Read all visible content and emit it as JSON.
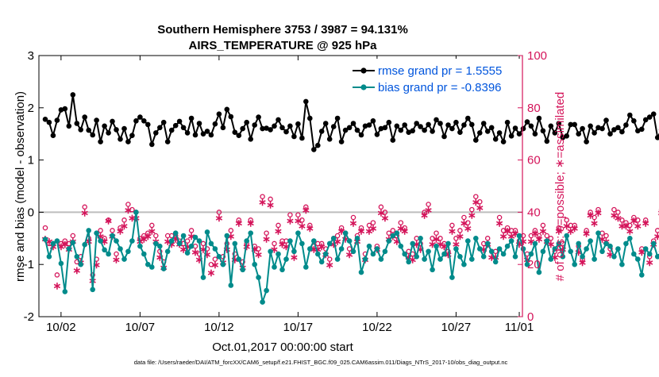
{
  "chart_data": {
    "type": "line",
    "title_line1": "Southern Hemisphere 3753 / 3987 = 94.131%",
    "title_line2": "AIRS_TEMPERATURE @ 925 hPa",
    "xlabel": "Oct.01,2017 00:00:00 start",
    "ylabel_left": "rmse and bias (model - observation)",
    "ylabel_right": "# of obs: o=possible; ∗=assimilated",
    "footer": "data file: /Users/raeder/DAI/ATM_forcXX/CAM6_setup/f.e21.FHIST_BGC.f09_025.CAM6assim.011/Diags_NTrS_2017-10/obs_diag_output.nc",
    "xlim": [
      0.6,
      31.2
    ],
    "ylim_left": [
      -2,
      3
    ],
    "ylim_right": [
      0,
      100
    ],
    "x_tick_labels": [
      {
        "x": 2,
        "label": "10/02"
      },
      {
        "x": 7,
        "label": "10/07"
      },
      {
        "x": 12,
        "label": "10/12"
      },
      {
        "x": 17,
        "label": "10/17"
      },
      {
        "x": 22,
        "label": "10/22"
      },
      {
        "x": 27,
        "label": "10/27"
      },
      {
        "x": 31,
        "label": "11/01"
      }
    ],
    "y_ticks_left": [
      "-2",
      "-1",
      "0",
      "1",
      "2",
      "3"
    ],
    "y_ticks_right": [
      "0",
      "20",
      "40",
      "60",
      "80",
      "100"
    ],
    "legend_position": "top-right",
    "legend": [
      {
        "label": "rmse grand pr = 1.5555",
        "color": "#000000",
        "text_color": "#0055dd"
      },
      {
        "label": "bias grand pr = -0.8396",
        "color": "#008b8b",
        "text_color": "#0055dd"
      }
    ],
    "zero_line": 0,
    "colors": {
      "rmse": "#000000",
      "bias": "#008b8b",
      "obs": "#d4145a",
      "right_axis": "#d4145a"
    },
    "x_start": 1.0,
    "x_step": 0.25,
    "series": [
      {
        "name": "rmse grand pr = 1.5555",
        "values": [
          1.78,
          1.72,
          1.47,
          1.76,
          1.96,
          1.98,
          1.65,
          2.25,
          1.7,
          1.58,
          1.82,
          1.57,
          1.48,
          1.76,
          1.35,
          1.65,
          1.52,
          1.74,
          1.58,
          1.4,
          1.6,
          1.35,
          1.47,
          1.75,
          1.82,
          1.75,
          1.68,
          1.3,
          1.52,
          1.62,
          1.72,
          1.35,
          1.57,
          1.66,
          1.74,
          1.62,
          1.52,
          1.8,
          1.48,
          1.7,
          1.5,
          1.55,
          1.48,
          1.69,
          1.88,
          1.62,
          1.97,
          1.83,
          1.53,
          1.47,
          1.6,
          1.72,
          1.4,
          1.67,
          1.82,
          1.6,
          1.61,
          1.58,
          1.65,
          1.77,
          1.62,
          1.54,
          1.65,
          1.45,
          1.69,
          1.42,
          2.12,
          1.8,
          1.2,
          1.28,
          1.55,
          1.7,
          1.4,
          1.64,
          1.8,
          1.35,
          1.57,
          1.62,
          1.7,
          1.57,
          1.48,
          1.65,
          1.67,
          1.75,
          1.49,
          1.6,
          1.62,
          1.72,
          1.38,
          1.65,
          1.57,
          1.67,
          1.53,
          1.56,
          1.7,
          1.64,
          1.57,
          1.68,
          1.55,
          1.77,
          1.7,
          1.45,
          1.67,
          1.6,
          1.72,
          1.53,
          1.67,
          1.8,
          1.68,
          1.38,
          1.52,
          1.7,
          1.55,
          1.62,
          1.4,
          1.52,
          1.35,
          1.72,
          1.46,
          1.61,
          1.5,
          1.6,
          1.73,
          1.65,
          1.5,
          1.8,
          1.56,
          1.36,
          1.65,
          1.52,
          1.7,
          1.43,
          1.46,
          1.68,
          1.68,
          1.5,
          1.6,
          1.35,
          1.65,
          1.52,
          1.62,
          1.6,
          1.76,
          1.5,
          1.58,
          1.62,
          1.54,
          1.67,
          1.86,
          1.75,
          1.56,
          1.59,
          1.77,
          1.82,
          1.88,
          1.43,
          1.58,
          1.65,
          1.38,
          1.7,
          1.5,
          1.72,
          1.47,
          1.52,
          1.95,
          1.72,
          1.45,
          1.67,
          1.55,
          1.44,
          1.62,
          1.8,
          1.52,
          1.68,
          1.57,
          1.75,
          1.55,
          1.66,
          1.48,
          1.58,
          1.75,
          1.47,
          1.5,
          1.55,
          1.53,
          1.4,
          1.68,
          1.58,
          1.62,
          1.52,
          1.48,
          1.75,
          1.42,
          1.57,
          1.68,
          1.6,
          1.55,
          1.52,
          1.7,
          1.42,
          1.68,
          1.55,
          1.58,
          1.46,
          1.55,
          1.72,
          1.6,
          1.52,
          1.85,
          1.7,
          1.5,
          1.45,
          1.7,
          1.9,
          1.65,
          1.73,
          1.55,
          1.8,
          1.56,
          1.7,
          1.95,
          1.58,
          1.7,
          1.85,
          1.82,
          1.6,
          1.47,
          1.47,
          1.38,
          1.42,
          1.62
        ]
      },
      {
        "name": "bias grand pr = -0.8396",
        "values": [
          -0.52,
          -0.85,
          -0.6,
          -0.55,
          -0.98,
          -1.52,
          -0.7,
          -0.58,
          -0.85,
          -1.0,
          -0.62,
          -0.35,
          -1.48,
          -0.4,
          -0.55,
          -0.72,
          -0.8,
          -0.45,
          -0.55,
          -0.7,
          -0.9,
          -0.75,
          -0.55,
          0.0,
          -0.65,
          -0.8,
          -1.0,
          -1.05,
          -0.6,
          -0.65,
          -1.08,
          -0.75,
          -0.55,
          -0.4,
          -0.6,
          -0.45,
          -0.78,
          -0.65,
          -0.48,
          -0.55,
          -1.25,
          -0.38,
          -0.6,
          -0.7,
          -0.85,
          -1.0,
          -0.45,
          -1.4,
          -0.6,
          -0.9,
          -1.1,
          -0.55,
          -0.4,
          -1.0,
          -1.25,
          -1.72,
          -1.5,
          -0.75,
          -1.05,
          -0.8,
          -1.1,
          -0.9,
          -0.55,
          -0.75,
          -0.4,
          -0.6,
          -1.05,
          -0.7,
          -0.55,
          -0.8,
          -0.95,
          -0.8,
          -0.6,
          -0.5,
          -0.9,
          -0.7,
          -0.4,
          -0.55,
          -0.75,
          -0.5,
          -1.15,
          -0.9,
          -0.65,
          -0.8,
          -0.7,
          -0.9,
          -0.75,
          -0.55,
          -0.45,
          -0.4,
          -0.65,
          -0.8,
          -0.95,
          -0.6,
          -0.85,
          -0.5,
          -0.9,
          -0.75,
          -1.1,
          -0.65,
          -0.9,
          -0.8,
          -0.6,
          -1.25,
          -0.7,
          -0.85,
          -1.0,
          -0.55,
          -0.9,
          -0.5,
          -0.7,
          -0.85,
          -0.6,
          -0.75,
          -0.95,
          -0.7,
          -0.8,
          -0.65,
          -0.55,
          -0.85,
          -0.45,
          -0.7,
          -1.0,
          -0.8,
          -0.6,
          -1.15,
          -0.75,
          -0.55,
          -0.9,
          -0.7,
          -0.6,
          -0.85,
          -0.45,
          -0.75,
          -1.0,
          -0.6,
          -0.85,
          -0.7,
          -0.55,
          -0.9,
          -0.4,
          -0.75,
          -0.6,
          -0.65,
          -0.85,
          -0.7,
          -1.0,
          -0.6,
          -0.5,
          -0.8,
          -0.9,
          -1.2,
          -0.7,
          -0.8,
          -0.6,
          -0.85,
          -0.75,
          -0.55,
          -1.1,
          -0.85,
          -0.65,
          -0.7,
          -0.8,
          -0.9,
          -0.6,
          -0.75,
          -0.7,
          -0.55,
          -0.85,
          -1.0,
          -0.9,
          -0.65,
          -0.8,
          -0.7,
          -0.6,
          -0.8,
          -0.65,
          -0.75,
          -0.85,
          -0.55,
          -0.95,
          -0.7,
          -0.6,
          -0.8,
          -0.65,
          -0.55,
          -0.75,
          -0.85,
          -0.6,
          -0.7,
          -0.9,
          -0.5,
          -0.8,
          -0.65,
          -0.7,
          -0.6,
          -0.85,
          -0.55,
          -0.75,
          -0.4,
          -0.6,
          -0.45,
          -0.75,
          -0.55,
          -0.65,
          -0.5,
          -0.35,
          -0.6,
          -0.4,
          -0.55,
          -0.8,
          -0.05,
          -0.6,
          -0.75,
          -0.45,
          -0.9,
          -0.7,
          -0.5,
          -0.65,
          -0.8,
          -1.0,
          -0.7,
          -0.9,
          -0.55,
          -0.75,
          -0.6,
          -0.35,
          -0.7,
          -0.65,
          -0.9,
          -0.5,
          -0.4,
          -0.65
        ]
      },
      {
        "name": "possible",
        "values": [
          34,
          28,
          28,
          16,
          28,
          29,
          28,
          31,
          21,
          23,
          42,
          30,
          16,
          22,
          33,
          30,
          37,
          33,
          24,
          34,
          37,
          43,
          41,
          40,
          30,
          31,
          32,
          35,
          31,
          25,
          21,
          31,
          31,
          31,
          29,
          28,
          29,
          33,
          27,
          24,
          28,
          26,
          20,
          22,
          40,
          23,
          28,
          33,
          24,
          37,
          21,
          28,
          37,
          27,
          26,
          46,
          32,
          45,
          28,
          35,
          29,
          29,
          39,
          25,
          39,
          37,
          42,
          35,
          27,
          28,
          28,
          26,
          22,
          30,
          31,
          34,
          32,
          26,
          38,
          31,
          34,
          24,
          35,
          36,
          27,
          42,
          40,
          32,
          33,
          31,
          36,
          34,
          25,
          24,
          30,
          28,
          40,
          43,
          30,
          32,
          30,
          28,
          25,
          35,
          30,
          33,
          38,
          36,
          41,
          46,
          44,
          28,
          30,
          25,
          25,
          38,
          33,
          34,
          33,
          33,
          29,
          31,
          24,
          31,
          33,
          31,
          35,
          31,
          30,
          25,
          34,
          28,
          37,
          35,
          35,
          27,
          22,
          33,
          40,
          38,
          41,
          32,
          31,
          26,
          41,
          40,
          37,
          36,
          35,
          38,
          37,
          26,
          37,
          23,
          29,
          33,
          41,
          34,
          36,
          30,
          25,
          21,
          37,
          44,
          58,
          57,
          32,
          39,
          26,
          47,
          45,
          42,
          36,
          26,
          32,
          33,
          28,
          43,
          34,
          31,
          37,
          36,
          39,
          28,
          33,
          23,
          26,
          46,
          47,
          36,
          42,
          33,
          33,
          30,
          34,
          28,
          33,
          29,
          36,
          36,
          32,
          28,
          31,
          34,
          26,
          32,
          44,
          42,
          38,
          36,
          35,
          37,
          22,
          25,
          32,
          30,
          30,
          35,
          33,
          23,
          25,
          35,
          25,
          21,
          29,
          25,
          33,
          35,
          33,
          27,
          30,
          32,
          54,
          32,
          31,
          21,
          31
        ]
      },
      {
        "name": "assimilated",
        "values": [
          30,
          29,
          27,
          12,
          27,
          28,
          26,
          29,
          18,
          21,
          40,
          29,
          14,
          20,
          31,
          29,
          37,
          31,
          22,
          33,
          35,
          41,
          38,
          38,
          29,
          30,
          31,
          33,
          29,
          23,
          19,
          29,
          28,
          30,
          28,
          26,
          27,
          31,
          25,
          22,
          26,
          24,
          17,
          20,
          38,
          21,
          26,
          31,
          22,
          36,
          19,
          27,
          36,
          26,
          24,
          44,
          30,
          43,
          26,
          33,
          28,
          27,
          37,
          23,
          37,
          35,
          41,
          34,
          26,
          26,
          27,
          24,
          20,
          28,
          29,
          33,
          30,
          24,
          36,
          29,
          33,
          22,
          33,
          34,
          26,
          40,
          38,
          30,
          31,
          29,
          34,
          33,
          23,
          22,
          28,
          26,
          39,
          41,
          28,
          30,
          28,
          27,
          24,
          33,
          28,
          31,
          36,
          34,
          39,
          44,
          42,
          26,
          28,
          23,
          23,
          36,
          31,
          33,
          31,
          32,
          28,
          29,
          22,
          29,
          32,
          30,
          33,
          29,
          28,
          23,
          33,
          26,
          35,
          33,
          34,
          25,
          21,
          32,
          39,
          36,
          40,
          30,
          29,
          24,
          39,
          38,
          35,
          35,
          33,
          37,
          35,
          25,
          36,
          21,
          28,
          31,
          40,
          33,
          35,
          28,
          23,
          19,
          35,
          42,
          54,
          55,
          30,
          37,
          24,
          45,
          43,
          40,
          34,
          24,
          30,
          31,
          27,
          41,
          32,
          29,
          35,
          34,
          38,
          26,
          32,
          21,
          24,
          44,
          45,
          34,
          40,
          31,
          32,
          28,
          33,
          27,
          31,
          28,
          35,
          34,
          30,
          26,
          29,
          33,
          24,
          30,
          42,
          41,
          36,
          34,
          34,
          35,
          21,
          23,
          30,
          29,
          28,
          34,
          31,
          22,
          23,
          34,
          23,
          19,
          28,
          23,
          31,
          34,
          32,
          25,
          29,
          30,
          53,
          31,
          30,
          19,
          30
        ]
      }
    ]
  }
}
